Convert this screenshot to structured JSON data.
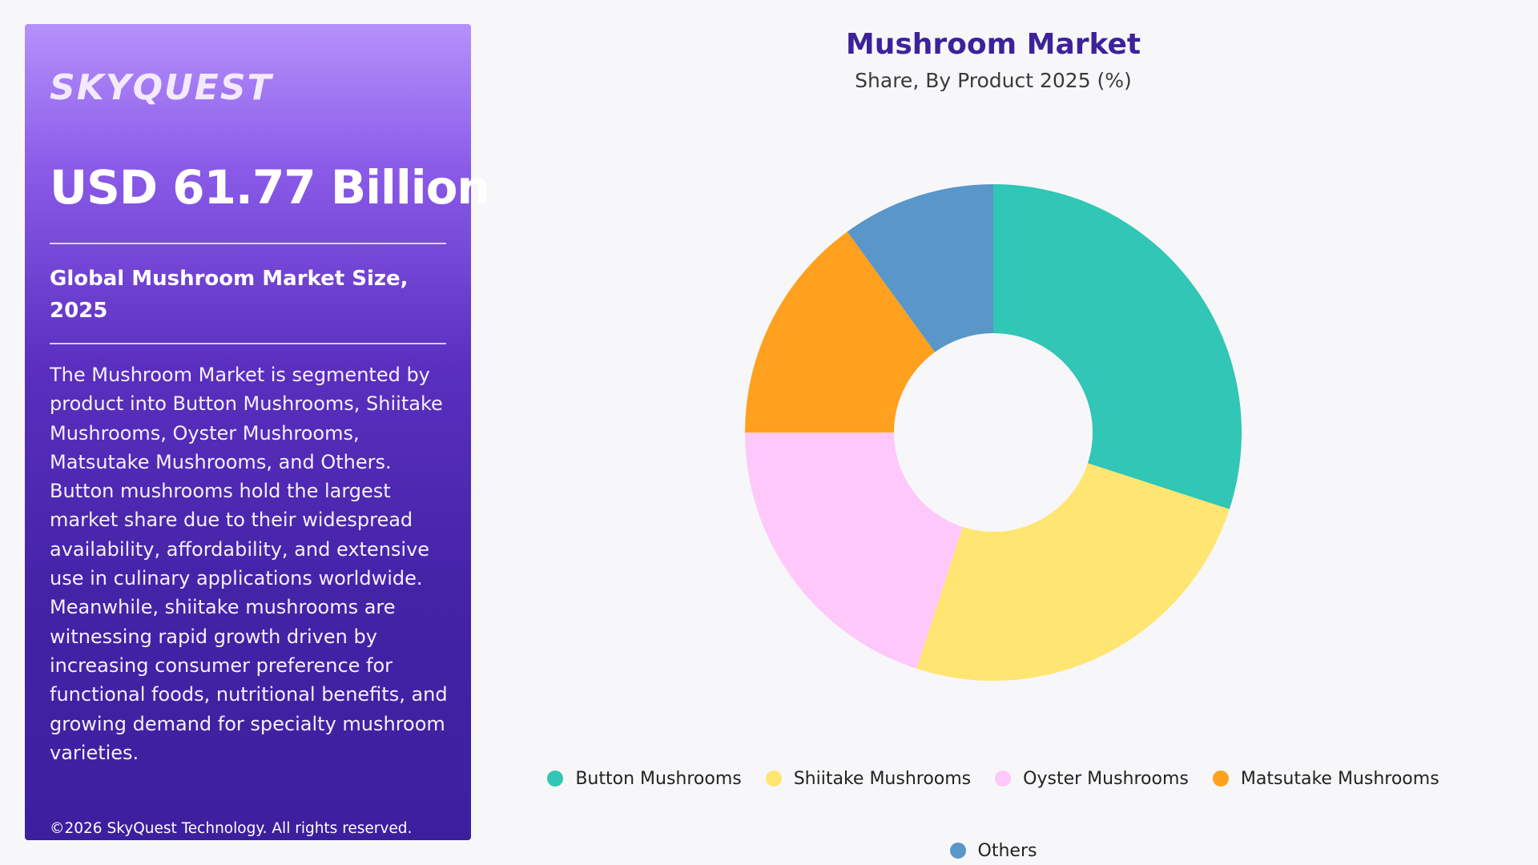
{
  "panel": {
    "logo": "SKYQUEST",
    "headline": "USD 61.77 Billion",
    "subhead": "Global Mushroom Market Size, 2025",
    "description": "The Mushroom Market is segmented by product into Button Mushrooms, Shiitake Mushrooms, Oyster Mushrooms, Matsutake Mushrooms, and Others. Button mushrooms hold the largest market share due to their widespread availability, affordability, and extensive use in culinary applications worldwide. Meanwhile, shiitake mushrooms are witnessing rapid growth driven by increasing consumer preference for functional foods, nutritional benefits, and growing demand for specialty mushroom varieties.",
    "copyright": "©2026 SkyQuest Technology. All rights reserved."
  },
  "chart_data": {
    "type": "pie",
    "title": "Mushroom Market",
    "subtitle": "Share, By Product 2025 (%)",
    "donut": true,
    "legend_position": "bottom",
    "categories": [
      "Button Mushrooms",
      "Shiitake Mushrooms",
      "Oyster Mushrooms",
      "Matsutake Mushrooms",
      "Others"
    ],
    "values": [
      30,
      25,
      20,
      15,
      10
    ],
    "colors": [
      "#31c6b6",
      "#ffe572",
      "#fec8fa",
      "#ffa11e",
      "#5996c9"
    ]
  }
}
